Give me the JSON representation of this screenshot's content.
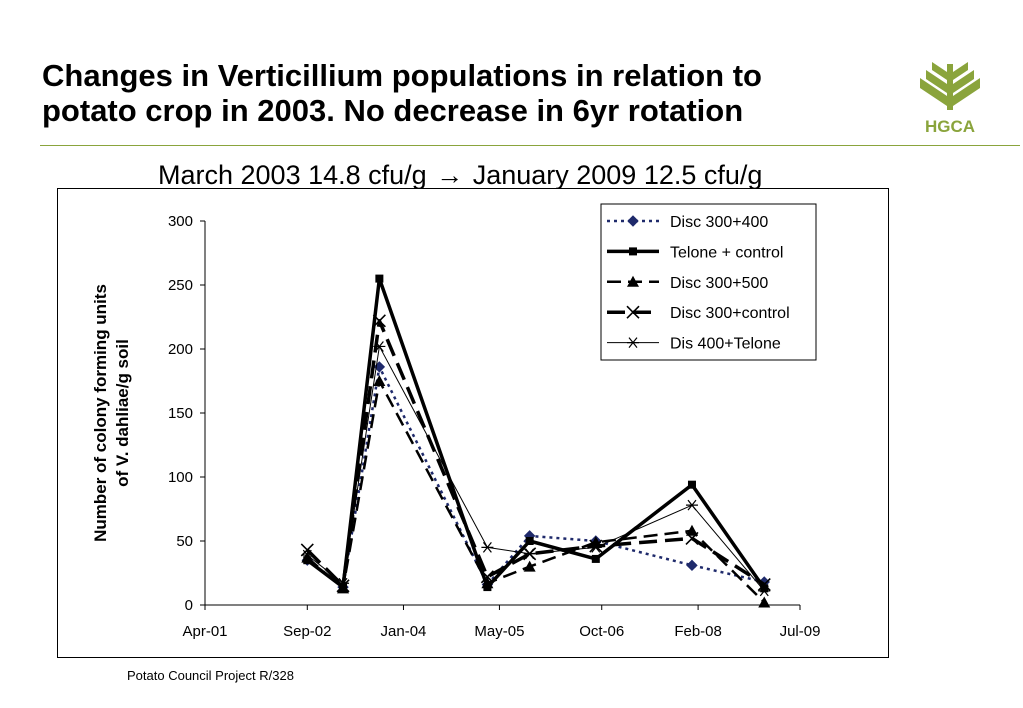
{
  "slide": {
    "title_line1": "Changes in Verticillium populations in relation to",
    "title_line2": "potato crop in 2003. No decrease in 6yr rotation",
    "subtitle_left": "March 2003 14.8 cfu/g",
    "subtitle_arrow": "→",
    "subtitle_right": "January 2009 12.5 cfu/g",
    "footer": "Potato Council Project R/328",
    "logo_text": "HGCA",
    "accent_color": "#8aa43c"
  },
  "chart_data": {
    "type": "line",
    "title": "",
    "ylabel": "Number of colony forming units of V. dahliae/g soil",
    "ylabel_lines": [
      "Number of colony forming units",
      "of V. dahliae/g soil"
    ],
    "xlabel": "",
    "ylim": [
      0,
      300
    ],
    "yticks": [
      0,
      50,
      100,
      150,
      200,
      250,
      300
    ],
    "xlim": [
      "2001-04-01",
      "2009-07-01"
    ],
    "xticks": [
      {
        "date": "2001-04-01",
        "label": "Apr-01"
      },
      {
        "date": "2002-09-01",
        "label": "Sep-02"
      },
      {
        "date": "2004-01-01",
        "label": "Jan-04"
      },
      {
        "date": "2005-05-01",
        "label": "May-05"
      },
      {
        "date": "2006-10-01",
        "label": "Oct-06"
      },
      {
        "date": "2008-02-01",
        "label": "Feb-08"
      },
      {
        "date": "2009-07-01",
        "label": "Jul-09"
      }
    ],
    "grid": false,
    "legend_position": "top-right",
    "series": [
      {
        "name": "Disc 300+400",
        "color": "#1f2a6b",
        "dash": "3,4",
        "width": 2.5,
        "marker": "diamond",
        "points": [
          {
            "x": "2002-09-01",
            "y": 35
          },
          {
            "x": "2003-03-01",
            "y": 14
          },
          {
            "x": "2003-09-01",
            "y": 186
          },
          {
            "x": "2005-03-01",
            "y": 16
          },
          {
            "x": "2005-10-01",
            "y": 54
          },
          {
            "x": "2006-09-01",
            "y": 50
          },
          {
            "x": "2008-01-01",
            "y": 31
          },
          {
            "x": "2009-01-01",
            "y": 18
          }
        ]
      },
      {
        "name": "Telone + control",
        "color": "#000000",
        "dash": "",
        "width": 3.5,
        "marker": "square",
        "points": [
          {
            "x": "2002-09-01",
            "y": 35
          },
          {
            "x": "2003-03-01",
            "y": 14
          },
          {
            "x": "2003-09-01",
            "y": 255
          },
          {
            "x": "2005-03-01",
            "y": 14
          },
          {
            "x": "2005-10-01",
            "y": 50
          },
          {
            "x": "2006-09-01",
            "y": 36
          },
          {
            "x": "2008-01-01",
            "y": 94
          },
          {
            "x": "2009-01-01",
            "y": 13
          }
        ]
      },
      {
        "name": "Disc 300+500",
        "color": "#000000",
        "dash": "14,7",
        "width": 2.5,
        "marker": "triangle",
        "points": [
          {
            "x": "2002-09-01",
            "y": 37
          },
          {
            "x": "2003-03-01",
            "y": 13
          },
          {
            "x": "2003-09-01",
            "y": 175
          },
          {
            "x": "2005-03-01",
            "y": 17
          },
          {
            "x": "2005-10-01",
            "y": 30
          },
          {
            "x": "2006-09-01",
            "y": 49
          },
          {
            "x": "2008-01-01",
            "y": 58
          },
          {
            "x": "2009-01-01",
            "y": 2
          }
        ]
      },
      {
        "name": "Disc 300+control",
        "color": "#000000",
        "dash": "18,8",
        "width": 3.5,
        "marker": "x",
        "points": [
          {
            "x": "2002-09-01",
            "y": 43
          },
          {
            "x": "2003-03-01",
            "y": 15
          },
          {
            "x": "2003-09-01",
            "y": 222
          },
          {
            "x": "2005-03-01",
            "y": 22
          },
          {
            "x": "2005-10-01",
            "y": 40
          },
          {
            "x": "2006-09-01",
            "y": 46
          },
          {
            "x": "2008-01-01",
            "y": 52
          },
          {
            "x": "2009-01-01",
            "y": 16
          }
        ]
      },
      {
        "name": "Dis 400+Telone",
        "color": "#000000",
        "dash": "",
        "width": 1,
        "marker": "star",
        "points": [
          {
            "x": "2002-09-01",
            "y": 39
          },
          {
            "x": "2003-03-01",
            "y": 17
          },
          {
            "x": "2003-09-01",
            "y": 202
          },
          {
            "x": "2005-03-01",
            "y": 45
          },
          {
            "x": "2005-10-01",
            "y": 40
          },
          {
            "x": "2006-09-01",
            "y": 45
          },
          {
            "x": "2008-01-01",
            "y": 78
          },
          {
            "x": "2009-01-01",
            "y": 11
          }
        ]
      }
    ]
  }
}
